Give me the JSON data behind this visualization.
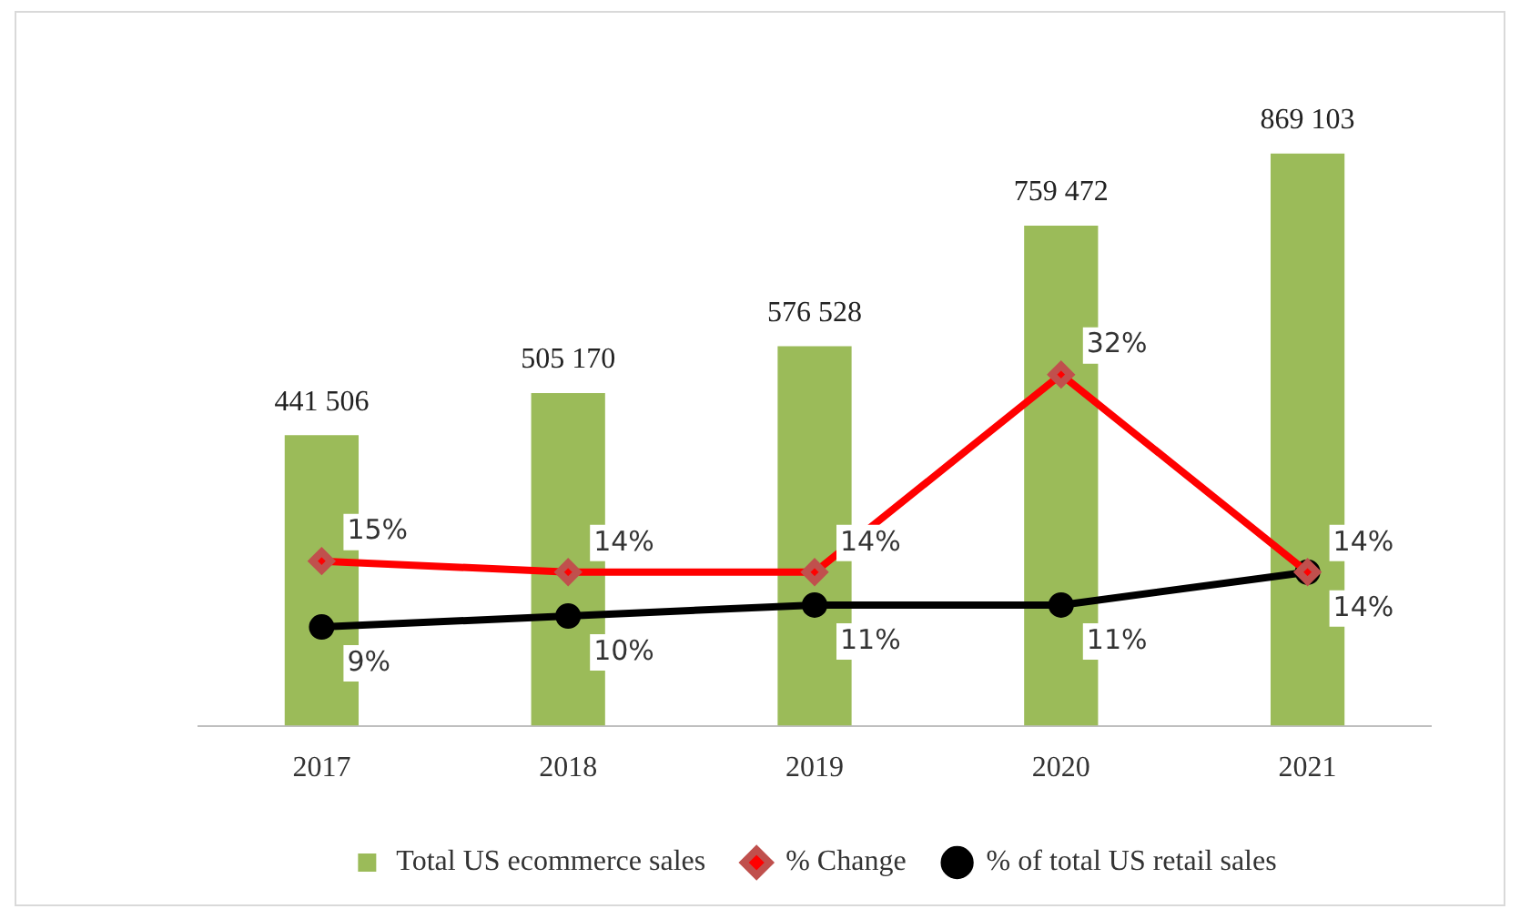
{
  "chart_data": {
    "type": "bar",
    "categories": [
      "2017",
      "2018",
      "2019",
      "2020",
      "2021"
    ],
    "series": [
      {
        "name": "Total US ecommerce sales",
        "color": "#9bbb59",
        "values": [
          441506,
          505170,
          576528,
          759472,
          869103
        ],
        "value_labels": [
          "441 506",
          "505 170",
          "576 528",
          "759 472",
          "869 103"
        ]
      },
      {
        "name": "% Change",
        "type": "line",
        "axis": "y2",
        "color": "#ff0000",
        "marker": "diamond",
        "values": [
          15,
          14,
          14,
          32,
          14
        ],
        "value_labels": [
          "15%",
          "14%",
          "14%",
          "32%",
          "14%"
        ]
      },
      {
        "name": "% of total US retail sales",
        "type": "line",
        "axis": "y2",
        "color": "#000000",
        "marker": "circle",
        "values": [
          9,
          10,
          11,
          11,
          14
        ],
        "value_labels": [
          "9%",
          "10%",
          "11%",
          "11%",
          "14%"
        ]
      }
    ],
    "tick_labels": "x",
    "grid": false,
    "legend": "bottom"
  }
}
